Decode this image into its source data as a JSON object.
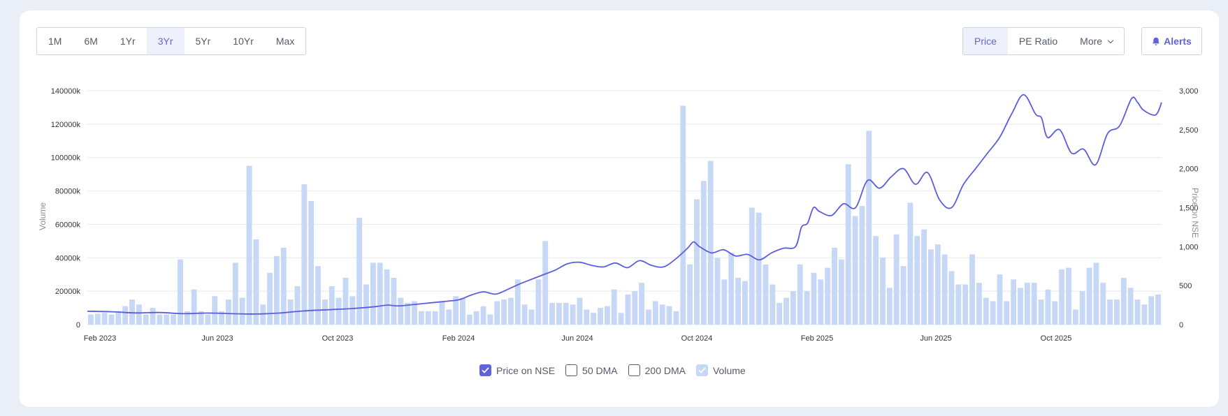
{
  "range_buttons": [
    {
      "label": "1M",
      "active": false
    },
    {
      "label": "6M",
      "active": false
    },
    {
      "label": "1Yr",
      "active": false
    },
    {
      "label": "3Yr",
      "active": true
    },
    {
      "label": "5Yr",
      "active": false
    },
    {
      "label": "10Yr",
      "active": false
    },
    {
      "label": "Max",
      "active": false
    }
  ],
  "mode_buttons": {
    "price": "Price",
    "pe_ratio": "PE Ratio",
    "more": "More"
  },
  "alerts_label": "Alerts",
  "legend": {
    "price": "Price on NSE",
    "dma50": "50 DMA",
    "dma200": "200 DMA",
    "volume": "Volume"
  },
  "colors": {
    "price_line": "#5b5de0",
    "volume_bar": "#c6d8f5",
    "accent": "#6064d9"
  },
  "chart_data": {
    "type": "bar+line",
    "x_tick_labels": [
      "Feb 2023",
      "Jun 2023",
      "Oct 2023",
      "Feb 2024",
      "Jun 2024",
      "Oct 2024",
      "Feb 2025",
      "Jun 2025",
      "Oct 2025"
    ],
    "y_left": {
      "label": "Volume",
      "ticks": [
        "0",
        "20000k",
        "40000k",
        "60000k",
        "80000k",
        "100000k",
        "120000k",
        "140000k"
      ],
      "range_k": [
        0,
        140000
      ]
    },
    "y_right": {
      "label": "Price on NSE",
      "ticks": [
        "0",
        "500",
        "1,000",
        "1,500",
        "2,000",
        "2,500",
        "3,000"
      ],
      "range": [
        0,
        3000
      ]
    },
    "grid": true,
    "volume_k": [
      6000,
      6500,
      7000,
      6000,
      8000,
      11000,
      15000,
      12000,
      6000,
      10000,
      6000,
      6000,
      6000,
      39000,
      8000,
      21000,
      8000,
      6000,
      17000,
      8000,
      15000,
      37000,
      16000,
      95000,
      51000,
      12000,
      31000,
      41000,
      46000,
      15000,
      23000,
      84000,
      74000,
      35000,
      15000,
      23000,
      16000,
      28000,
      17000,
      64000,
      24000,
      37000,
      37000,
      33000,
      28000,
      16000,
      13000,
      14000,
      8000,
      8000,
      8000,
      14000,
      9000,
      17000,
      16000,
      6000,
      8000,
      11000,
      6000,
      14000,
      15000,
      16000,
      27000,
      12000,
      9000,
      27000,
      50000,
      13000,
      13000,
      13000,
      12000,
      16000,
      9000,
      7000,
      10000,
      11000,
      21000,
      7000,
      18000,
      20000,
      25000,
      9000,
      14000,
      12000,
      11000,
      8000,
      131000,
      36000,
      75000,
      86000,
      98000,
      40000,
      27000,
      43000,
      28000,
      26000,
      70000,
      67000,
      36000,
      24000,
      13000,
      16000,
      20000,
      36000,
      20000,
      31000,
      27000,
      34000,
      46000,
      39000,
      96000,
      65000,
      71000,
      116000,
      53000,
      40000,
      22000,
      54000,
      35000,
      73000,
      53000,
      57000,
      45000,
      48000,
      42000,
      32000,
      24000,
      24000,
      42000,
      25000,
      16000,
      14000,
      30000,
      14000,
      27000,
      22000,
      25000,
      25000,
      15000,
      21000,
      14000,
      33000,
      34000,
      9000,
      20000,
      34000,
      37000,
      25000,
      15000,
      15000,
      28000,
      22000,
      15000,
      12000,
      17000,
      18000
    ],
    "price_points": [
      [
        0,
        170
      ],
      [
        4,
        165
      ],
      [
        8,
        150
      ],
      [
        12,
        155
      ],
      [
        16,
        140
      ],
      [
        20,
        148
      ],
      [
        24,
        140
      ],
      [
        28,
        135
      ],
      [
        32,
        148
      ],
      [
        36,
        175
      ],
      [
        40,
        190
      ],
      [
        44,
        205
      ],
      [
        48,
        230
      ],
      [
        50,
        250
      ],
      [
        52,
        240
      ],
      [
        56,
        270
      ],
      [
        60,
        300
      ],
      [
        62,
        320
      ],
      [
        64,
        380
      ],
      [
        66,
        420
      ],
      [
        68,
        390
      ],
      [
        70,
        450
      ],
      [
        72,
        520
      ],
      [
        74,
        580
      ],
      [
        76,
        640
      ],
      [
        78,
        700
      ],
      [
        80,
        780
      ],
      [
        82,
        800
      ],
      [
        84,
        760
      ],
      [
        86,
        740
      ],
      [
        88,
        790
      ],
      [
        90,
        730
      ],
      [
        92,
        820
      ],
      [
        94,
        760
      ],
      [
        96,
        740
      ],
      [
        98,
        840
      ],
      [
        100,
        980
      ],
      [
        101,
        1060
      ],
      [
        102,
        1000
      ],
      [
        104,
        920
      ],
      [
        106,
        960
      ],
      [
        108,
        880
      ],
      [
        110,
        900
      ],
      [
        112,
        830
      ],
      [
        114,
        920
      ],
      [
        116,
        980
      ],
      [
        118,
        1000
      ],
      [
        119,
        1250
      ],
      [
        120,
        1300
      ],
      [
        121,
        1500
      ],
      [
        122,
        1450
      ],
      [
        124,
        1400
      ],
      [
        126,
        1550
      ],
      [
        128,
        1500
      ],
      [
        130,
        1850
      ],
      [
        132,
        1750
      ],
      [
        134,
        1900
      ],
      [
        136,
        2000
      ],
      [
        138,
        1800
      ],
      [
        140,
        1950
      ],
      [
        142,
        1600
      ],
      [
        144,
        1500
      ],
      [
        146,
        1800
      ],
      [
        148,
        2000
      ],
      [
        150,
        2200
      ],
      [
        152,
        2400
      ],
      [
        154,
        2700
      ],
      [
        156,
        2950
      ],
      [
        158,
        2700
      ],
      [
        159,
        2650
      ],
      [
        160,
        2400
      ],
      [
        162,
        2500
      ],
      [
        164,
        2200
      ],
      [
        166,
        2250
      ],
      [
        168,
        2050
      ],
      [
        170,
        2450
      ],
      [
        172,
        2550
      ],
      [
        174,
        2900
      ],
      [
        175,
        2850
      ],
      [
        176,
        2750
      ],
      [
        178,
        2690
      ],
      [
        179,
        2850
      ]
    ]
  }
}
